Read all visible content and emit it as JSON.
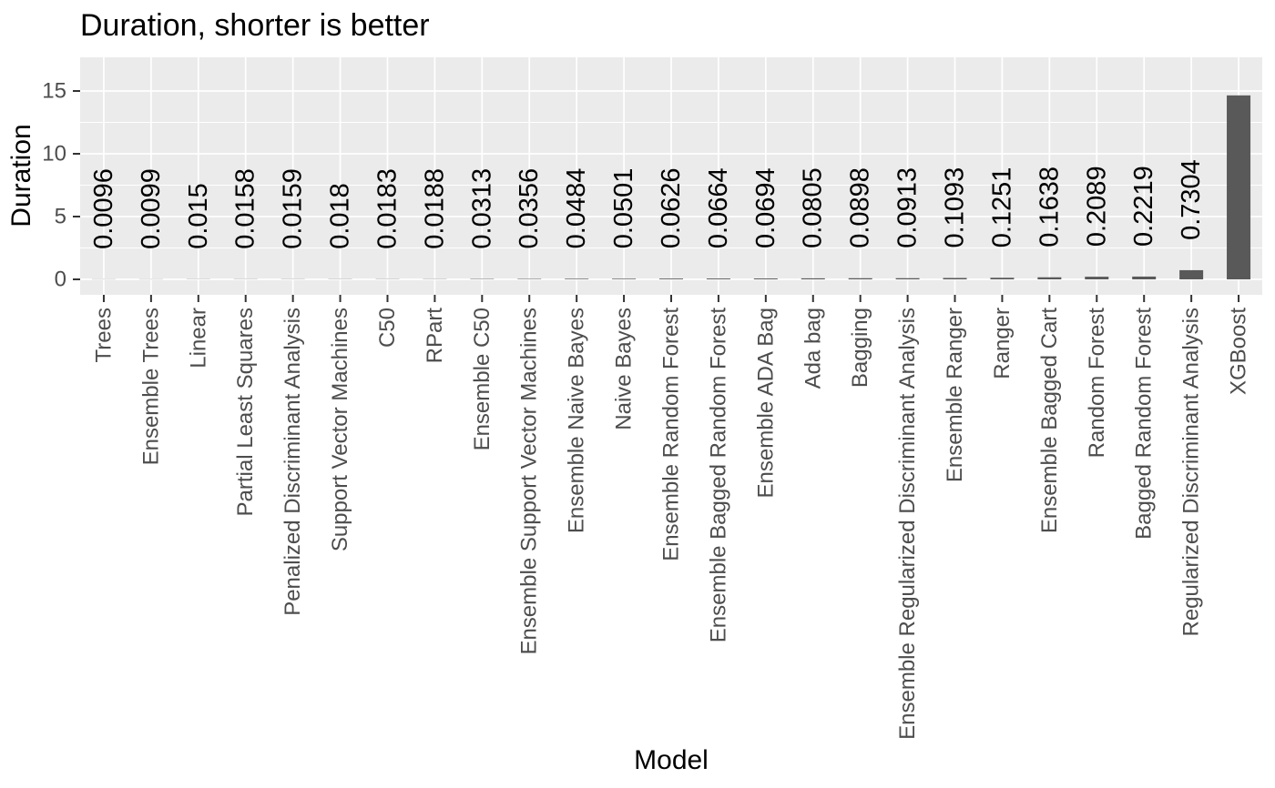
{
  "chart_data": {
    "type": "bar",
    "title": "Duration, shorter is better",
    "xlabel": "Model",
    "ylabel": "Duration",
    "yticks": [
      0,
      5,
      10,
      15
    ],
    "ylim": [
      0,
      17.5
    ],
    "grid": "on",
    "legend": "none",
    "categories": [
      "Trees",
      "Ensemble Trees",
      "Linear",
      "Partial Least Squares",
      "Penalized Discriminant Analysis",
      "Support Vector Machines",
      "C50",
      "RPart",
      "Ensemble C50",
      "Ensemble Support Vector Machines",
      "Ensemble Naive Bayes",
      "Naive Bayes",
      "Ensemble Random Forest",
      "Ensemble Bagged Random Forest",
      "Ensemble ADA Bag",
      "Ada bag",
      "Bagging",
      "Ensemble Regularized Discriminant Analysis",
      "Ensemble Ranger",
      "Ranger",
      "Ensemble Bagged Cart",
      "Random Forest",
      "Bagged Random Forest",
      "Regularized Discriminant Analysis",
      "XGBoost"
    ],
    "values": [
      0.0096,
      0.0099,
      0.015,
      0.0158,
      0.0159,
      0.018,
      0.0183,
      0.0188,
      0.0313,
      0.0356,
      0.0484,
      0.0501,
      0.0626,
      0.0664,
      0.0694,
      0.0805,
      0.0898,
      0.0913,
      0.1093,
      0.1251,
      0.1638,
      0.2089,
      0.2219,
      0.7304,
      14.65
    ],
    "bar_value_labels": [
      "0.0096",
      "0.0099",
      "0.015",
      "0.0158",
      "0.0159",
      "0.018",
      "0.0183",
      "0.0188",
      "0.0313",
      "0.0356",
      "0.0484",
      "0.0501",
      "0.0626",
      "0.0664",
      "0.0694",
      "0.0805",
      "0.0898",
      "0.0913",
      "0.1093",
      "0.1251",
      "0.1638",
      "0.2089",
      "0.2219",
      "0.7304",
      ""
    ],
    "colors": {
      "bar": "#595959",
      "panel_background": "#EBEBEB",
      "gridline": "#FFFFFF",
      "tick_label": "#4D4D4D",
      "axis_title": "#000000",
      "title": "#000000",
      "value_label": "#000000",
      "tick_mark": "#333333"
    }
  }
}
